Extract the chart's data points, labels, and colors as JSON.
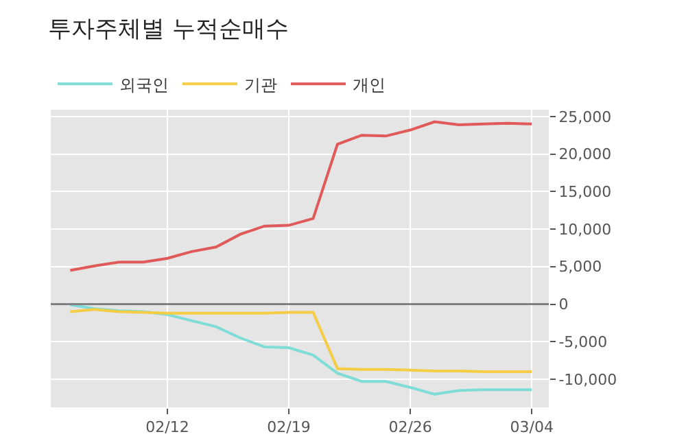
{
  "chart_data": {
    "type": "line",
    "title": "투자주체별 누적순매수",
    "categories": [
      null,
      null,
      null,
      null,
      "02/12",
      null,
      null,
      null,
      null,
      "02/19",
      null,
      null,
      null,
      null,
      "02/26",
      null,
      null,
      null,
      null,
      "03/04"
    ],
    "series": [
      {
        "name": "외국인",
        "color": "#7fdcd6",
        "values": [
          -100,
          -600,
          -900,
          -1000,
          -1400,
          -2200,
          -3000,
          -4500,
          -5700,
          -5800,
          -6800,
          -9200,
          -10300,
          -10300,
          -11100,
          -12000,
          -11500,
          -11400,
          -11400,
          -11400
        ]
      },
      {
        "name": "기관",
        "color": "#f5cc45",
        "values": [
          -1000,
          -700,
          -1000,
          -1100,
          -1200,
          -1200,
          -1200,
          -1200,
          -1200,
          -1100,
          -1100,
          -8600,
          -8700,
          -8700,
          -8800,
          -8900,
          -8900,
          -9000,
          -9000,
          -9000
        ]
      },
      {
        "name": "개인",
        "color": "#e05a5a",
        "values": [
          4500,
          5100,
          5600,
          5600,
          6100,
          7000,
          7600,
          9300,
          10400,
          10500,
          11400,
          21300,
          22500,
          22400,
          23200,
          24300,
          23900,
          24000,
          24100,
          24000
        ]
      }
    ],
    "ylim": [
      -13750,
      25900
    ],
    "yticks": [
      {
        "value": -10000,
        "label": "-10,000"
      },
      {
        "value": -5000,
        "label": "-5,000"
      },
      0,
      {
        "value": 5000,
        "label": "5,000"
      },
      {
        "value": 10000,
        "label": "10,000"
      },
      {
        "value": 15000,
        "label": "15,000"
      },
      {
        "value": 20000,
        "label": "20,000"
      },
      {
        "value": 25000,
        "label": "25,000"
      }
    ],
    "grid": true,
    "legend": "top left",
    "marker": "none",
    "line_style": "solid",
    "ref_lines": [
      {
        "axis": "y",
        "value": 0,
        "color": "#808080"
      }
    ]
  }
}
